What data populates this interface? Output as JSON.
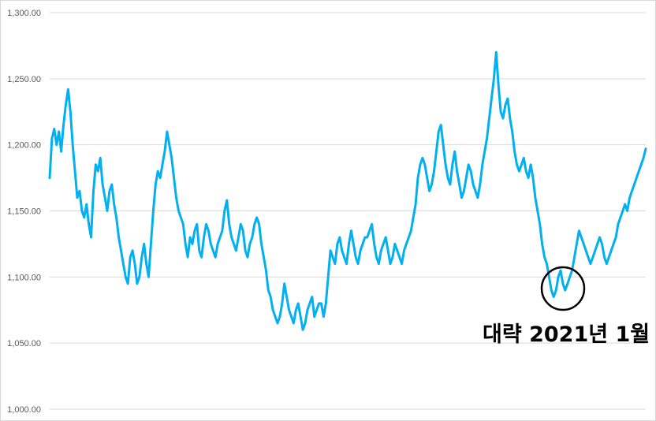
{
  "chart_data": {
    "type": "line",
    "title": "",
    "xlabel": "",
    "ylabel": "",
    "ylim": [
      1000,
      1300
    ],
    "yticks": [
      1000,
      1050,
      1100,
      1150,
      1200,
      1250,
      1300
    ],
    "ytick_labels": [
      "1,000.00",
      "1,050.00",
      "1,100.00",
      "1,150.00",
      "1,200.00",
      "1,250.00",
      "1,300.00"
    ],
    "grid": true,
    "legend": "none",
    "colors": {
      "series": "#00b0f0",
      "grid": "#d9d9d9",
      "annotation": "#000000"
    },
    "series": [
      {
        "values": [
          1175,
          1205,
          1212,
          1200,
          1210,
          1195,
          1215,
          1230,
          1242,
          1225,
          1200,
          1180,
          1160,
          1165,
          1150,
          1145,
          1155,
          1140,
          1130,
          1165,
          1185,
          1180,
          1190,
          1170,
          1160,
          1150,
          1165,
          1170,
          1155,
          1145,
          1130,
          1120,
          1110,
          1100,
          1095,
          1115,
          1120,
          1110,
          1095,
          1100,
          1115,
          1125,
          1110,
          1100,
          1125,
          1150,
          1170,
          1180,
          1175,
          1185,
          1195,
          1210,
          1200,
          1190,
          1175,
          1160,
          1150,
          1145,
          1140,
          1125,
          1115,
          1130,
          1125,
          1135,
          1140,
          1120,
          1115,
          1130,
          1140,
          1135,
          1125,
          1120,
          1115,
          1125,
          1130,
          1135,
          1150,
          1158,
          1140,
          1130,
          1125,
          1120,
          1130,
          1140,
          1135,
          1120,
          1115,
          1125,
          1130,
          1140,
          1145,
          1140,
          1125,
          1115,
          1105,
          1090,
          1085,
          1075,
          1070,
          1065,
          1070,
          1080,
          1095,
          1085,
          1075,
          1070,
          1065,
          1075,
          1080,
          1070,
          1060,
          1065,
          1075,
          1080,
          1085,
          1070,
          1075,
          1080,
          1080,
          1070,
          1080,
          1100,
          1120,
          1115,
          1110,
          1125,
          1130,
          1120,
          1115,
          1110,
          1125,
          1135,
          1125,
          1115,
          1110,
          1120,
          1125,
          1130,
          1130,
          1135,
          1140,
          1125,
          1115,
          1110,
          1120,
          1125,
          1130,
          1120,
          1110,
          1115,
          1125,
          1120,
          1115,
          1110,
          1120,
          1125,
          1130,
          1135,
          1145,
          1155,
          1175,
          1185,
          1190,
          1185,
          1175,
          1165,
          1170,
          1180,
          1195,
          1210,
          1215,
          1200,
          1185,
          1175,
          1170,
          1185,
          1195,
          1180,
          1170,
          1160,
          1165,
          1175,
          1185,
          1180,
          1170,
          1165,
          1160,
          1170,
          1185,
          1195,
          1205,
          1220,
          1235,
          1250,
          1270,
          1245,
          1225,
          1220,
          1230,
          1235,
          1220,
          1210,
          1195,
          1185,
          1180,
          1185,
          1190,
          1180,
          1175,
          1185,
          1175,
          1160,
          1150,
          1140,
          1125,
          1115,
          1110,
          1100,
          1090,
          1085,
          1090,
          1100,
          1105,
          1095,
          1090,
          1095,
          1100,
          1105,
          1115,
          1125,
          1135,
          1130,
          1125,
          1120,
          1115,
          1110,
          1115,
          1120,
          1125,
          1130,
          1125,
          1115,
          1110,
          1115,
          1120,
          1125,
          1130,
          1140,
          1145,
          1150,
          1155,
          1150,
          1160,
          1165,
          1170,
          1175,
          1180,
          1185,
          1190,
          1197
        ]
      }
    ],
    "annotation": {
      "text": "대략 2021년 1월"
    }
  }
}
